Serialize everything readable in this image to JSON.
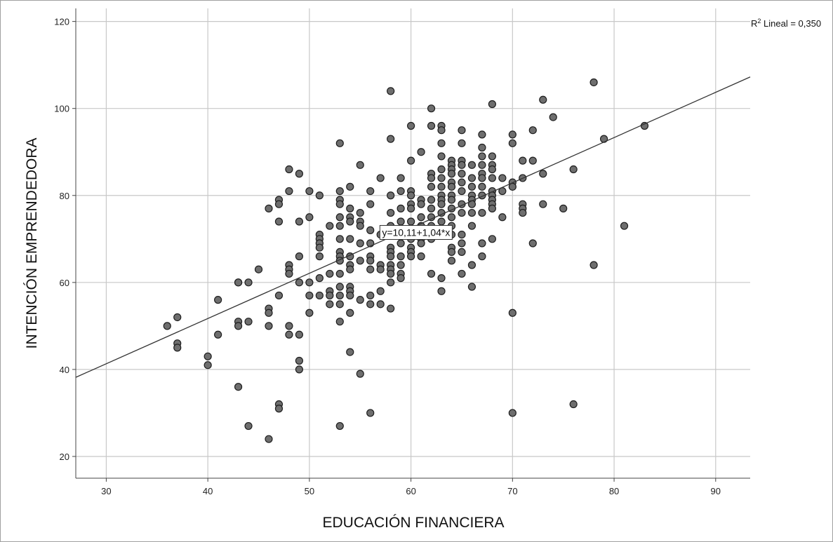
{
  "chart_data": {
    "type": "scatter",
    "title": "",
    "xlabel": "EDUCACIÓN FINANCIERA",
    "ylabel": "INTENCIÓN EMPRENDEDORA",
    "xlim": [
      27,
      93.4
    ],
    "ylim": [
      15,
      123
    ],
    "x_ticks": [
      30,
      40,
      50,
      60,
      70,
      80,
      90
    ],
    "y_ticks": [
      20,
      40,
      60,
      80,
      100,
      120
    ],
    "grid": true,
    "fit_line": {
      "intercept": 10.11,
      "slope": 1.04,
      "label": "y=10,11+1,04*x",
      "label_at": [
        60.5,
        71.5
      ]
    },
    "r2_label": {
      "prefix": "R",
      "sup": "2",
      "suffix": " Lineal = 0,350"
    },
    "colors": {
      "point_fill": "#6e6e6e",
      "point_stroke": "#1e1e1e",
      "grid": "#c8c8c8",
      "line": "#333333"
    },
    "points": [
      [
        36,
        50
      ],
      [
        37,
        52
      ],
      [
        37,
        46
      ],
      [
        37,
        45
      ],
      [
        40,
        43
      ],
      [
        40,
        41
      ],
      [
        41,
        56
      ],
      [
        41,
        48
      ],
      [
        43,
        60
      ],
      [
        43,
        60
      ],
      [
        43,
        51
      ],
      [
        43,
        50
      ],
      [
        43,
        36
      ],
      [
        44,
        60
      ],
      [
        44,
        51
      ],
      [
        44,
        27
      ],
      [
        45,
        63
      ],
      [
        46,
        77
      ],
      [
        46,
        54
      ],
      [
        46,
        53
      ],
      [
        46,
        50
      ],
      [
        46,
        24
      ],
      [
        47,
        79
      ],
      [
        47,
        78
      ],
      [
        47,
        74
      ],
      [
        47,
        57
      ],
      [
        47,
        32
      ],
      [
        47,
        31
      ],
      [
        48,
        86
      ],
      [
        48,
        81
      ],
      [
        48,
        64
      ],
      [
        48,
        63
      ],
      [
        48,
        62
      ],
      [
        48,
        50
      ],
      [
        48,
        48
      ],
      [
        49,
        85
      ],
      [
        49,
        74
      ],
      [
        49,
        66
      ],
      [
        49,
        60
      ],
      [
        49,
        48
      ],
      [
        49,
        42
      ],
      [
        49,
        40
      ],
      [
        50,
        81
      ],
      [
        50,
        75
      ],
      [
        50,
        60
      ],
      [
        50,
        57
      ],
      [
        50,
        53
      ],
      [
        51,
        80
      ],
      [
        51,
        71
      ],
      [
        51,
        70
      ],
      [
        51,
        69
      ],
      [
        51,
        68
      ],
      [
        51,
        66
      ],
      [
        51,
        61
      ],
      [
        51,
        57
      ],
      [
        52,
        73
      ],
      [
        52,
        62
      ],
      [
        52,
        58
      ],
      [
        52,
        57
      ],
      [
        52,
        55
      ],
      [
        53,
        92
      ],
      [
        53,
        81
      ],
      [
        53,
        79
      ],
      [
        53,
        78
      ],
      [
        53,
        75
      ],
      [
        53,
        73
      ],
      [
        53,
        70
      ],
      [
        53,
        67
      ],
      [
        53,
        66
      ],
      [
        53,
        65
      ],
      [
        53,
        62
      ],
      [
        53,
        59
      ],
      [
        53,
        57
      ],
      [
        53,
        55
      ],
      [
        53,
        51
      ],
      [
        53,
        27
      ],
      [
        54,
        82
      ],
      [
        54,
        77
      ],
      [
        54,
        75
      ],
      [
        54,
        74
      ],
      [
        54,
        70
      ],
      [
        54,
        66
      ],
      [
        54,
        64
      ],
      [
        54,
        63
      ],
      [
        54,
        59
      ],
      [
        54,
        58
      ],
      [
        54,
        57
      ],
      [
        54,
        53
      ],
      [
        54,
        44
      ],
      [
        55,
        87
      ],
      [
        55,
        76
      ],
      [
        55,
        74
      ],
      [
        55,
        73
      ],
      [
        55,
        69
      ],
      [
        55,
        65
      ],
      [
        55,
        56
      ],
      [
        55,
        39
      ],
      [
        56,
        81
      ],
      [
        56,
        78
      ],
      [
        56,
        72
      ],
      [
        56,
        69
      ],
      [
        56,
        66
      ],
      [
        56,
        65
      ],
      [
        56,
        63
      ],
      [
        56,
        57
      ],
      [
        56,
        55
      ],
      [
        56,
        30
      ],
      [
        57,
        84
      ],
      [
        57,
        71
      ],
      [
        57,
        64
      ],
      [
        57,
        63
      ],
      [
        57,
        58
      ],
      [
        57,
        55
      ],
      [
        58,
        104
      ],
      [
        58,
        93
      ],
      [
        58,
        80
      ],
      [
        58,
        76
      ],
      [
        58,
        73
      ],
      [
        58,
        68
      ],
      [
        58,
        67
      ],
      [
        58,
        66
      ],
      [
        58,
        64
      ],
      [
        58,
        63
      ],
      [
        58,
        62
      ],
      [
        58,
        60
      ],
      [
        58,
        54
      ],
      [
        59,
        84
      ],
      [
        59,
        81
      ],
      [
        59,
        77
      ],
      [
        59,
        74
      ],
      [
        59,
        71
      ],
      [
        59,
        69
      ],
      [
        59,
        66
      ],
      [
        59,
        64
      ],
      [
        59,
        62
      ],
      [
        59,
        61
      ],
      [
        60,
        96
      ],
      [
        60,
        88
      ],
      [
        60,
        81
      ],
      [
        60,
        80
      ],
      [
        60,
        78
      ],
      [
        60,
        77
      ],
      [
        60,
        74
      ],
      [
        60,
        72
      ],
      [
        60,
        70
      ],
      [
        60,
        68
      ],
      [
        60,
        67
      ],
      [
        60,
        66
      ],
      [
        61,
        90
      ],
      [
        61,
        79
      ],
      [
        61,
        78
      ],
      [
        61,
        75
      ],
      [
        61,
        73
      ],
      [
        61,
        70
      ],
      [
        61,
        69
      ],
      [
        61,
        66
      ],
      [
        62,
        100
      ],
      [
        62,
        96
      ],
      [
        62,
        85
      ],
      [
        62,
        84
      ],
      [
        62,
        82
      ],
      [
        62,
        79
      ],
      [
        62,
        77
      ],
      [
        62,
        75
      ],
      [
        62,
        73
      ],
      [
        62,
        71
      ],
      [
        62,
        70
      ],
      [
        62,
        62
      ],
      [
        63,
        96
      ],
      [
        63,
        95
      ],
      [
        63,
        92
      ],
      [
        63,
        89
      ],
      [
        63,
        86
      ],
      [
        63,
        84
      ],
      [
        63,
        82
      ],
      [
        63,
        80
      ],
      [
        63,
        79
      ],
      [
        63,
        78
      ],
      [
        63,
        76
      ],
      [
        63,
        74
      ],
      [
        63,
        72
      ],
      [
        63,
        61
      ],
      [
        63,
        58
      ],
      [
        64,
        88
      ],
      [
        64,
        87
      ],
      [
        64,
        86
      ],
      [
        64,
        85
      ],
      [
        64,
        83
      ],
      [
        64,
        82
      ],
      [
        64,
        80
      ],
      [
        64,
        79
      ],
      [
        64,
        77
      ],
      [
        64,
        75
      ],
      [
        64,
        73
      ],
      [
        64,
        71
      ],
      [
        64,
        68
      ],
      [
        64,
        67
      ],
      [
        64,
        65
      ],
      [
        65,
        95
      ],
      [
        65,
        92
      ],
      [
        65,
        88
      ],
      [
        65,
        87
      ],
      [
        65,
        85
      ],
      [
        65,
        83
      ],
      [
        65,
        81
      ],
      [
        65,
        78
      ],
      [
        65,
        76
      ],
      [
        65,
        71
      ],
      [
        65,
        69
      ],
      [
        65,
        67
      ],
      [
        65,
        62
      ],
      [
        66,
        87
      ],
      [
        66,
        84
      ],
      [
        66,
        82
      ],
      [
        66,
        80
      ],
      [
        66,
        79
      ],
      [
        66,
        78
      ],
      [
        66,
        76
      ],
      [
        66,
        73
      ],
      [
        66,
        64
      ],
      [
        66,
        59
      ],
      [
        67,
        94
      ],
      [
        67,
        91
      ],
      [
        67,
        89
      ],
      [
        67,
        87
      ],
      [
        67,
        85
      ],
      [
        67,
        84
      ],
      [
        67,
        82
      ],
      [
        67,
        80
      ],
      [
        67,
        76
      ],
      [
        67,
        69
      ],
      [
        67,
        66
      ],
      [
        68,
        101
      ],
      [
        68,
        89
      ],
      [
        68,
        87
      ],
      [
        68,
        86
      ],
      [
        68,
        84
      ],
      [
        68,
        81
      ],
      [
        68,
        80
      ],
      [
        68,
        79
      ],
      [
        68,
        78
      ],
      [
        68,
        77
      ],
      [
        68,
        70
      ],
      [
        69,
        84
      ],
      [
        69,
        81
      ],
      [
        69,
        75
      ],
      [
        70,
        94
      ],
      [
        70,
        92
      ],
      [
        70,
        83
      ],
      [
        70,
        82
      ],
      [
        70,
        53
      ],
      [
        70,
        30
      ],
      [
        71,
        88
      ],
      [
        71,
        84
      ],
      [
        71,
        78
      ],
      [
        71,
        77
      ],
      [
        71,
        76
      ],
      [
        72,
        95
      ],
      [
        72,
        88
      ],
      [
        72,
        69
      ],
      [
        73,
        102
      ],
      [
        73,
        85
      ],
      [
        73,
        78
      ],
      [
        74,
        98
      ],
      [
        75,
        77
      ],
      [
        76,
        86
      ],
      [
        76,
        32
      ],
      [
        78,
        106
      ],
      [
        78,
        64
      ],
      [
        79,
        93
      ],
      [
        81,
        73
      ],
      [
        83,
        96
      ]
    ]
  }
}
